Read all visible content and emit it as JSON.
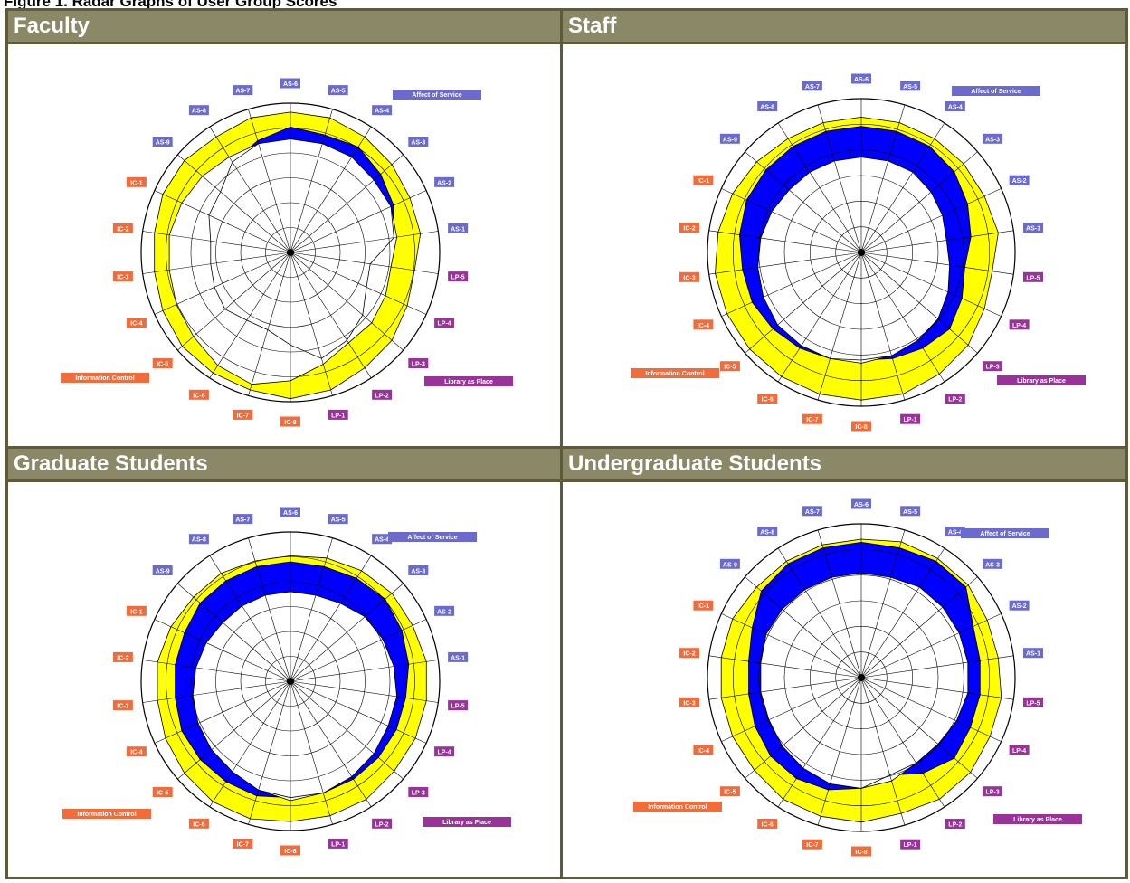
{
  "figure_title": "Figure 1. Radar Graphs of User Group Scores",
  "colors": {
    "minimum_fill": "#ff0000",
    "perceived_fill": "#0000ff",
    "desired_fill": "#ffff00",
    "superiority_fill": "#008000",
    "affect_of_service": "#6b6bcf",
    "information_control": "#f26b3a",
    "library_as_place": "#993399",
    "frame": "#5f5a3a",
    "header_bg": "#8b8868"
  },
  "chart_data": [
    {
      "type": "radar",
      "title": "Faculty",
      "axes": [
        "AS-6",
        "AS-5",
        "AS-4",
        "AS-3",
        "AS-2",
        "AS-1",
        "LP-5",
        "LP-4",
        "LP-3",
        "LP-2",
        "LP-1",
        "IC-8",
        "IC-7",
        "IC-6",
        "IC-5",
        "IC-4",
        "IC-3",
        "IC-2",
        "IC-1",
        "AS-9",
        "AS-8",
        "AS-7"
      ],
      "legend": [
        "Affect of Service",
        "Library as Place",
        "Information Control"
      ],
      "rlim": [
        4,
        9
      ],
      "series": [
        {
          "values": [
            7.8,
            7.8,
            7.8,
            7.7,
            7.7,
            7.6,
            7.4,
            7.5,
            7.6,
            7.6,
            7.9,
            8.3,
            8.6,
            8.5,
            8.3,
            8.2,
            8.1,
            8.1,
            8.0,
            7.9,
            7.8,
            7.8
          ]
        },
        {
          "values": [
            8.2,
            8.1,
            8.2,
            8.0,
            7.8,
            7.5,
            6.7,
            6.8,
            7.2,
            7.5,
            7.7,
            7.1,
            6.7,
            6.7,
            6.9,
            6.8,
            6.7,
            6.7,
            7.0,
            7.1,
            7.6,
            7.9
          ]
        },
        {
          "values": [
            8.7,
            8.7,
            8.6,
            8.5,
            8.4,
            8.4,
            8.2,
            8.3,
            8.5,
            8.6,
            8.8,
            8.9,
            8.8,
            8.8,
            8.8,
            8.7,
            8.6,
            8.6,
            8.7,
            8.7,
            8.6,
            8.7
          ]
        }
      ]
    },
    {
      "type": "radar",
      "title": "Staff",
      "axes": [
        "AS-6",
        "AS-5",
        "AS-4",
        "AS-3",
        "AS-2",
        "AS-1",
        "LP-5",
        "LP-4",
        "LP-3",
        "LP-2",
        "LP-1",
        "IC-8",
        "IC-7",
        "IC-6",
        "IC-5",
        "IC-4",
        "IC-3",
        "IC-2",
        "IC-1",
        "AS-9",
        "AS-8",
        "AS-7"
      ],
      "legend": [
        "Affect of Service",
        "Library as Place",
        "Information Control"
      ],
      "rlim": [
        4,
        9
      ],
      "series": [
        {
          "values": [
            7.1,
            7.1,
            7.1,
            7.0,
            6.9,
            6.8,
            6.9,
            7.1,
            7.3,
            7.4,
            7.5,
            7.6,
            7.6,
            7.6,
            7.6,
            7.5,
            7.4,
            7.3,
            7.2,
            7.1,
            7.1,
            7.1
          ]
        },
        {
          "values": [
            8.1,
            8.1,
            8.1,
            8.0,
            7.8,
            7.6,
            7.4,
            7.6,
            7.8,
            7.7,
            7.6,
            7.5,
            7.6,
            7.7,
            7.8,
            7.9,
            7.9,
            8.0,
            8.1,
            8.1,
            8.1,
            8.1
          ]
        },
        {
          "values": [
            8.4,
            8.4,
            8.4,
            8.4,
            8.4,
            8.5,
            8.3,
            8.4,
            8.6,
            8.7,
            8.8,
            8.8,
            8.8,
            8.8,
            8.8,
            8.8,
            8.8,
            8.7,
            8.6,
            8.5,
            8.4,
            8.4
          ]
        }
      ]
    },
    {
      "type": "radar",
      "title": "Graduate Students",
      "axes": [
        "AS-6",
        "AS-5",
        "AS-4",
        "AS-3",
        "AS-2",
        "AS-1",
        "LP-5",
        "LP-4",
        "LP-3",
        "LP-2",
        "LP-1",
        "IC-8",
        "IC-7",
        "IC-6",
        "IC-5",
        "IC-4",
        "IC-3",
        "IC-2",
        "IC-1",
        "AS-9",
        "AS-8",
        "AS-7"
      ],
      "legend": [
        "Affect of Service",
        "Library as Place",
        "Information Control"
      ],
      "rlim": [
        4,
        9
      ],
      "series": [
        {
          "values": [
            7.0,
            7.0,
            7.1,
            7.3,
            7.4,
            7.5,
            7.6,
            7.6,
            7.7,
            7.8,
            7.9,
            8.0,
            7.8,
            7.6,
            7.5,
            7.4,
            7.3,
            7.2,
            7.1,
            7.0,
            7.0,
            7.0
          ]
        },
        {
          "values": [
            8.0,
            8.0,
            8.1,
            8.2,
            8.1,
            8.0,
            7.9,
            7.9,
            7.9,
            7.9,
            7.9,
            7.9,
            8.0,
            8.0,
            8.0,
            8.0,
            7.9,
            7.9,
            7.9,
            8.0,
            8.0,
            8.0
          ]
        },
        {
          "values": [
            8.2,
            8.3,
            8.4,
            8.5,
            8.5,
            8.6,
            8.6,
            8.6,
            8.6,
            8.7,
            8.7,
            8.7,
            8.8,
            8.8,
            8.7,
            8.6,
            8.5,
            8.5,
            8.4,
            8.3,
            8.3,
            8.2
          ]
        }
      ]
    },
    {
      "type": "radar",
      "title": "Undergraduate Students",
      "axes": [
        "AS-6",
        "AS-5",
        "AS-4",
        "AS-3",
        "AS-2",
        "AS-1",
        "LP-5",
        "LP-4",
        "LP-3",
        "LP-2",
        "LP-1",
        "IC-8",
        "IC-7",
        "IC-6",
        "IC-5",
        "IC-4",
        "IC-3",
        "IC-2",
        "IC-1",
        "AS-9",
        "AS-8",
        "AS-7"
      ],
      "legend": [
        "Affect of Service",
        "Library as Place",
        "Information Control"
      ],
      "rlim": [
        4,
        9
      ],
      "series": [
        {
          "values": [
            7.4,
            7.4,
            7.5,
            7.5,
            7.5,
            7.5,
            7.5,
            7.4,
            7.3,
            7.3,
            7.5,
            7.6,
            7.6,
            7.5,
            7.4,
            7.3,
            7.3,
            7.3,
            7.4,
            7.4,
            7.4,
            7.4
          ]
        },
        {
          "values": [
            8.4,
            8.4,
            8.5,
            8.5,
            8.0,
            7.9,
            7.9,
            7.9,
            8.0,
            7.7,
            7.3,
            7.6,
            7.8,
            7.9,
            7.9,
            7.8,
            7.7,
            7.7,
            7.9,
            8.3,
            8.4,
            8.4
          ]
        },
        {
          "values": [
            8.5,
            8.6,
            8.6,
            8.6,
            8.5,
            8.5,
            8.6,
            8.6,
            8.7,
            8.7,
            8.6,
            8.7,
            8.7,
            8.7,
            8.6,
            8.6,
            8.6,
            8.6,
            8.6,
            8.5,
            8.5,
            8.5
          ]
        }
      ]
    }
  ]
}
